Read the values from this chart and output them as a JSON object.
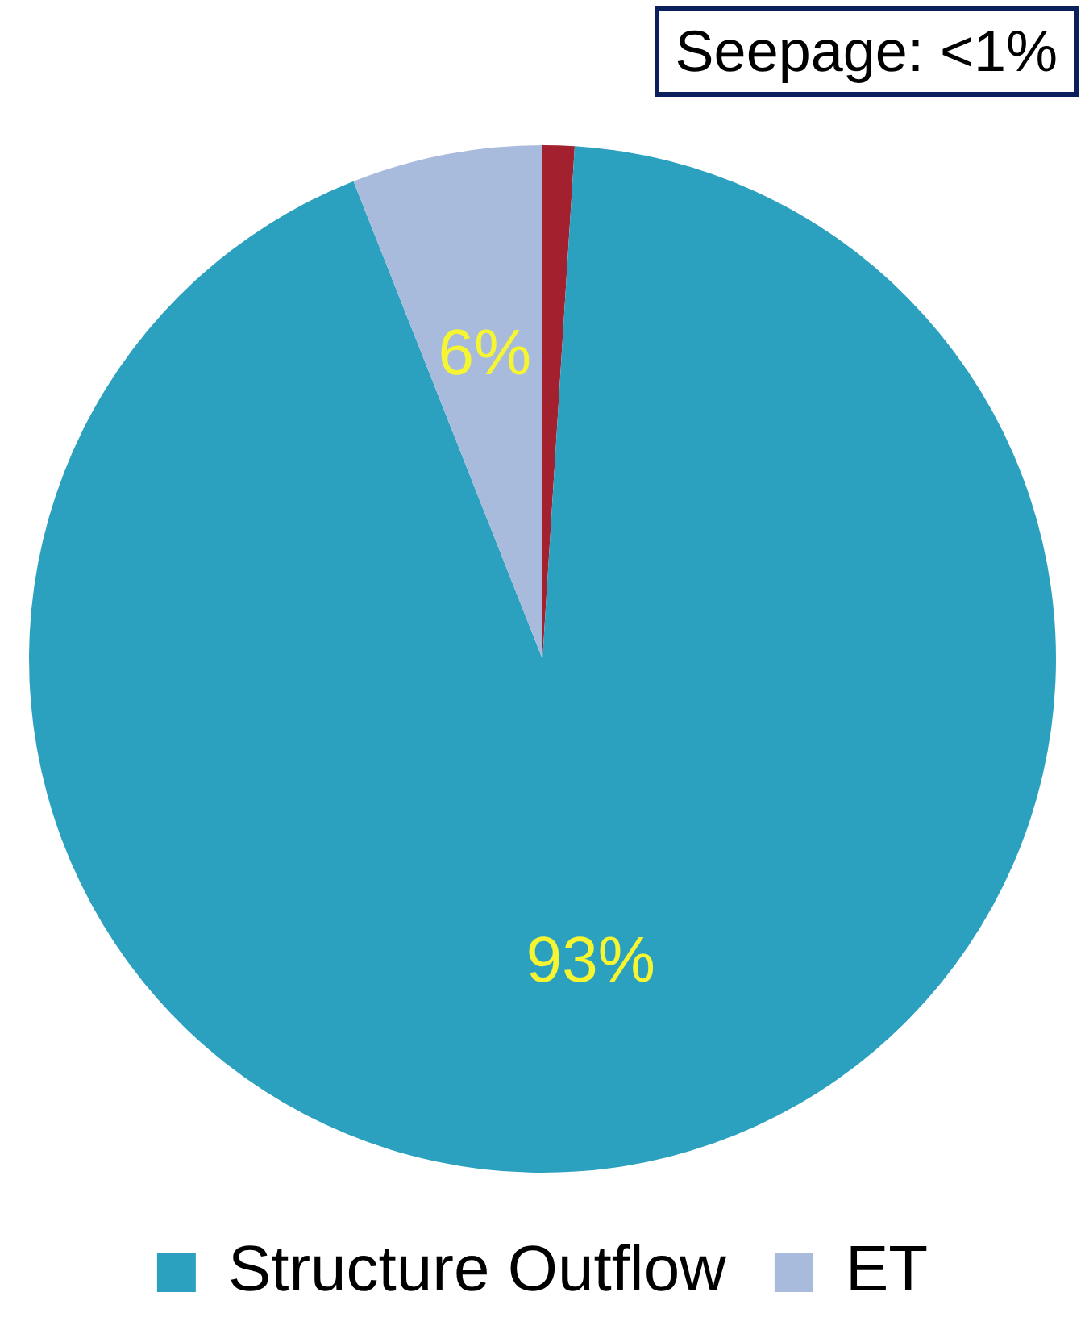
{
  "chart_data": {
    "type": "pie",
    "categories": [
      null,
      "Structure Outflow",
      "ET"
    ],
    "values": [
      1,
      93,
      6
    ],
    "colors": [
      "#a3202e",
      "#2ca1bf",
      "#a8bbdd"
    ],
    "value_labels": [
      null,
      "93%",
      "6%"
    ],
    "annotations": [
      "Seepage: <1%"
    ],
    "legend": "bottom"
  }
}
